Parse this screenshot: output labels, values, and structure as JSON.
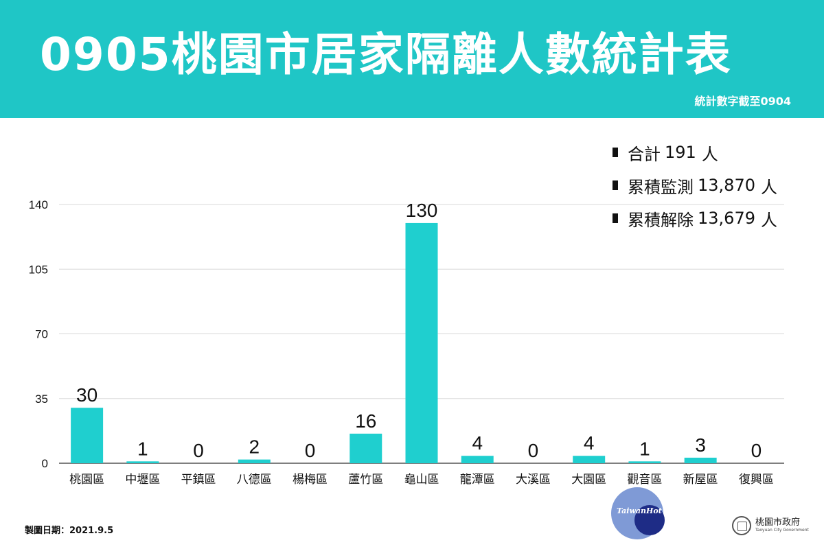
{
  "header": {
    "title": "0905桃園市居家隔離人數統計表",
    "subtitle": "統計數字截至0904"
  },
  "stats": [
    {
      "label": "合計",
      "value": "191",
      "unit": "人"
    },
    {
      "label": "累積監測",
      "value": "13,870",
      "unit": "人"
    },
    {
      "label": "累積解除",
      "value": "13,679",
      "unit": "人"
    }
  ],
  "footer": {
    "date": "製圖日期：2021.9.5",
    "watermark": "TaiwanHot",
    "gov_name": "桃園市政府",
    "gov_en": "Taoyuan City Government"
  },
  "colors": {
    "header_bg": "#1fc6c6",
    "bar": "#1fcfcf"
  },
  "chart_data": {
    "type": "bar",
    "categories": [
      "桃園區",
      "中壢區",
      "平鎮區",
      "八德區",
      "楊梅區",
      "蘆竹區",
      "龜山區",
      "龍潭區",
      "大溪區",
      "大園區",
      "觀音區",
      "新屋區",
      "復興區"
    ],
    "values": [
      30,
      1,
      0,
      2,
      0,
      16,
      130,
      4,
      0,
      4,
      1,
      3,
      0
    ],
    "ylim": [
      0,
      140
    ],
    "yticks": [
      0,
      35,
      70,
      105,
      140
    ],
    "grid": true,
    "data_labels": true
  }
}
